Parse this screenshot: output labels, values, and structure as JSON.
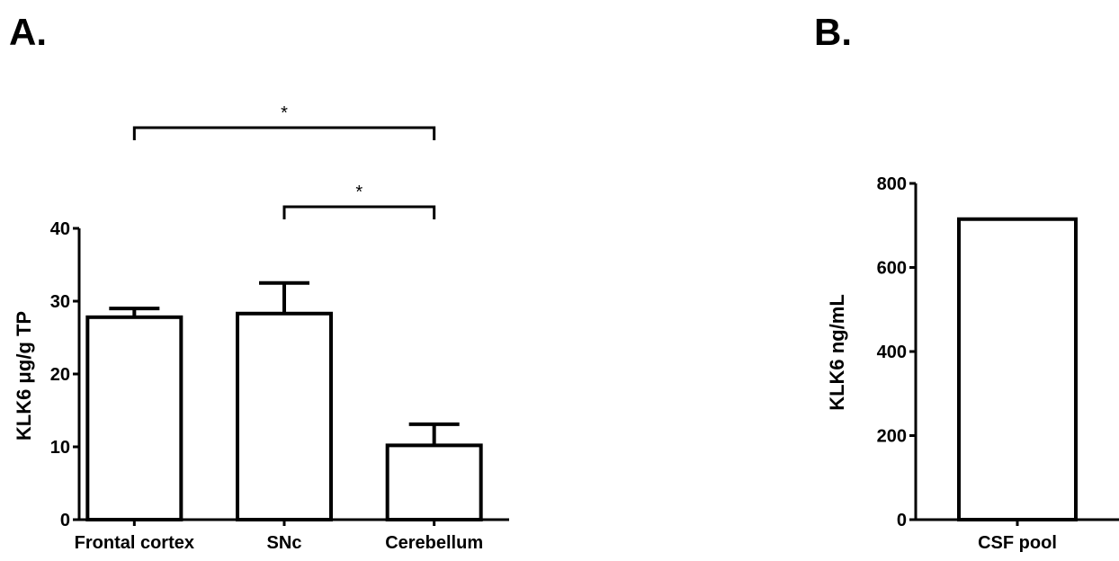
{
  "chart_data": [
    {
      "type": "bar",
      "panel_label": "A.",
      "categories": [
        "Frontal cortex",
        "SNc",
        "Cerebellum"
      ],
      "values": [
        27.8,
        28.3,
        10.2
      ],
      "error_upper": [
        29.0,
        32.5,
        13.1
      ],
      "ylabel": "KLK6 μg/g TP",
      "ylim": [
        0,
        40
      ],
      "yticks": [
        0,
        10,
        20,
        30,
        40
      ],
      "significance": [
        {
          "from": "Frontal cortex",
          "to": "Cerebellum",
          "label": "*"
        },
        {
          "from": "SNc",
          "to": "Cerebellum",
          "label": "*"
        }
      ]
    },
    {
      "type": "bar",
      "panel_label": "B.",
      "categories": [
        "CSF pool"
      ],
      "values": [
        715
      ],
      "ylabel": "KLK6 ng/mL",
      "ylim": [
        0,
        800
      ],
      "yticks": [
        0,
        200,
        400,
        600,
        800
      ]
    }
  ]
}
